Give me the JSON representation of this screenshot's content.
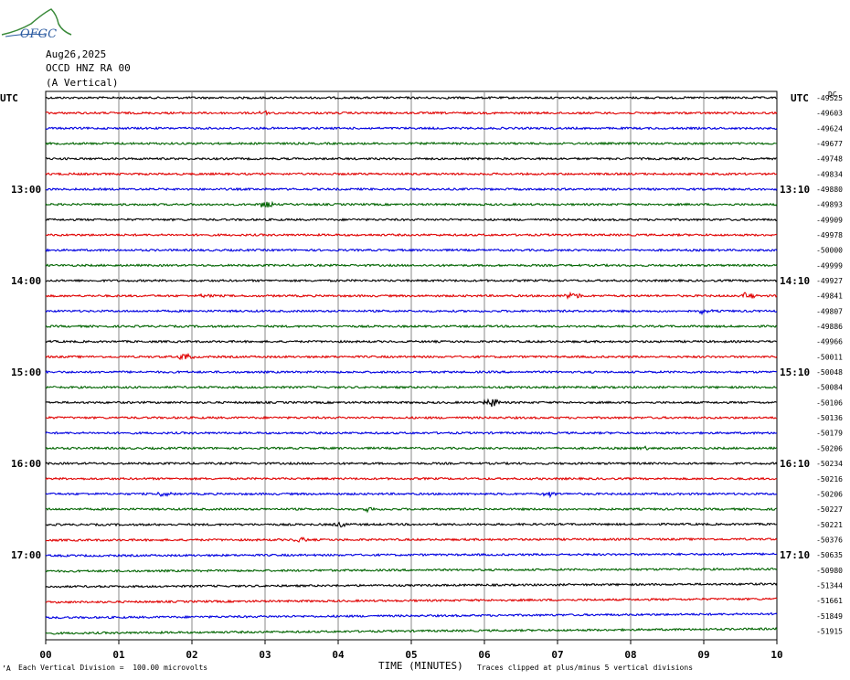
{
  "header": {
    "logo_text": "OFGC",
    "date": "Aug26,2025",
    "station": "OCCD HNZ RA 00",
    "component": "(A Vertical)"
  },
  "chart_data": {
    "type": "line",
    "title": "",
    "xlabel": "TIME (MINUTES)",
    "xlim": [
      0,
      10
    ],
    "x_ticks": [
      "00",
      "01",
      "02",
      "03",
      "04",
      "05",
      "06",
      "07",
      "08",
      "09",
      "10"
    ],
    "left_axis_label": "UTC",
    "right_axis_label": "UTC",
    "right_header": "DC",
    "left_time_labels": [
      "13:00",
      "14:00",
      "15:00",
      "16:00",
      "17:00"
    ],
    "right_time_labels": [
      "13:10",
      "14:10",
      "15:10",
      "16:10",
      "17:10"
    ],
    "trace_colors": [
      "#000000",
      "#e00000",
      "#0000e0",
      "#006400"
    ],
    "series": [
      {
        "dc": "-49525"
      },
      {
        "dc": "-49603"
      },
      {
        "dc": "-49624"
      },
      {
        "dc": "-49677"
      },
      {
        "dc": "-49748"
      },
      {
        "dc": "-49834"
      },
      {
        "dc": "-49880"
      },
      {
        "dc": "-49893"
      },
      {
        "dc": "-49909"
      },
      {
        "dc": "-49978"
      },
      {
        "dc": "-50000"
      },
      {
        "dc": "-49999"
      },
      {
        "dc": "-49927"
      },
      {
        "dc": "-49841"
      },
      {
        "dc": "-49807"
      },
      {
        "dc": "-49886"
      },
      {
        "dc": "-49966"
      },
      {
        "dc": "-50011"
      },
      {
        "dc": "-50048"
      },
      {
        "dc": "-50084"
      },
      {
        "dc": "-50106"
      },
      {
        "dc": "-50136"
      },
      {
        "dc": "-50179"
      },
      {
        "dc": "-50206"
      },
      {
        "dc": "-50234"
      },
      {
        "dc": "-50216"
      },
      {
        "dc": "-50206"
      },
      {
        "dc": "-50227"
      },
      {
        "dc": "-50221"
      },
      {
        "dc": "-50376"
      },
      {
        "dc": "-50635"
      },
      {
        "dc": "-50980"
      },
      {
        "dc": "-51344"
      },
      {
        "dc": "-51661"
      },
      {
        "dc": "-51849"
      },
      {
        "dc": "-51915"
      }
    ],
    "events": [
      {
        "trace": 13,
        "minute": 7.2,
        "amp": 5
      },
      {
        "trace": 20,
        "minute": 6.1,
        "amp": 6
      },
      {
        "trace": 7,
        "minute": 3.0,
        "amp": 4
      },
      {
        "trace": 17,
        "minute": 1.9,
        "amp": 4
      },
      {
        "trace": 13,
        "minute": 9.6,
        "amp": 4
      },
      {
        "trace": 26,
        "minute": 1.6,
        "amp": 3
      },
      {
        "trace": 26,
        "minute": 6.9,
        "amp": 3
      },
      {
        "trace": 29,
        "minute": 3.5,
        "amp": 3
      },
      {
        "trace": 28,
        "minute": 4.0,
        "amp": 3
      },
      {
        "trace": 14,
        "minute": 9.0,
        "amp": 3
      },
      {
        "trace": 27,
        "minute": 4.4,
        "amp": 2
      },
      {
        "trace": 23,
        "minute": 8.2,
        "amp": 2
      },
      {
        "trace": 13,
        "minute": 2.2,
        "amp": 2
      },
      {
        "trace": 1,
        "minute": 3.0,
        "amp": 2
      }
    ]
  },
  "footer": {
    "left_mark": "’A",
    "scale_note": "Each Vertical Division =  100.00 microvolts",
    "clip_note": "Traces clipped at plus/minus 5 vertical divisions"
  }
}
